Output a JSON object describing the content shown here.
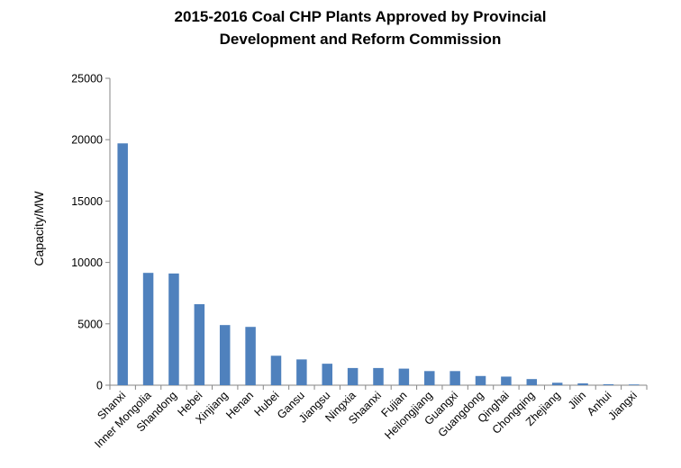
{
  "chart_data": {
    "type": "bar",
    "title_line1": "2015-2016 Coal CHP Plants Approved by Provincial",
    "title_line2": "Development and Reform Commission",
    "xlabel": "",
    "ylabel": "Capacity/MW",
    "ylim": [
      0,
      25000
    ],
    "yticks": [
      "0",
      "5000",
      "10000",
      "15000",
      "20000",
      "25000"
    ],
    "bar_color": "#4F81BD",
    "grid": false,
    "categories": [
      "Shanxi",
      "Inner Mongolia",
      "Shandong",
      "Hebei",
      "Xinjiang",
      "Henan",
      "Hubei",
      "Gansu",
      "Jiangsu",
      "Ningxia",
      "Shaanxi",
      "Fujian",
      "Heilongjiang",
      "Guangxi",
      "Guangdong",
      "Qinghai",
      "Chongqing",
      "Zhejiang",
      "Jilin",
      "Anhui",
      "Jiangxi"
    ],
    "values": [
      19700,
      9150,
      9100,
      6600,
      4900,
      4750,
      2400,
      2100,
      1750,
      1400,
      1400,
      1350,
      1150,
      1150,
      750,
      700,
      500,
      200,
      150,
      80,
      60
    ]
  }
}
